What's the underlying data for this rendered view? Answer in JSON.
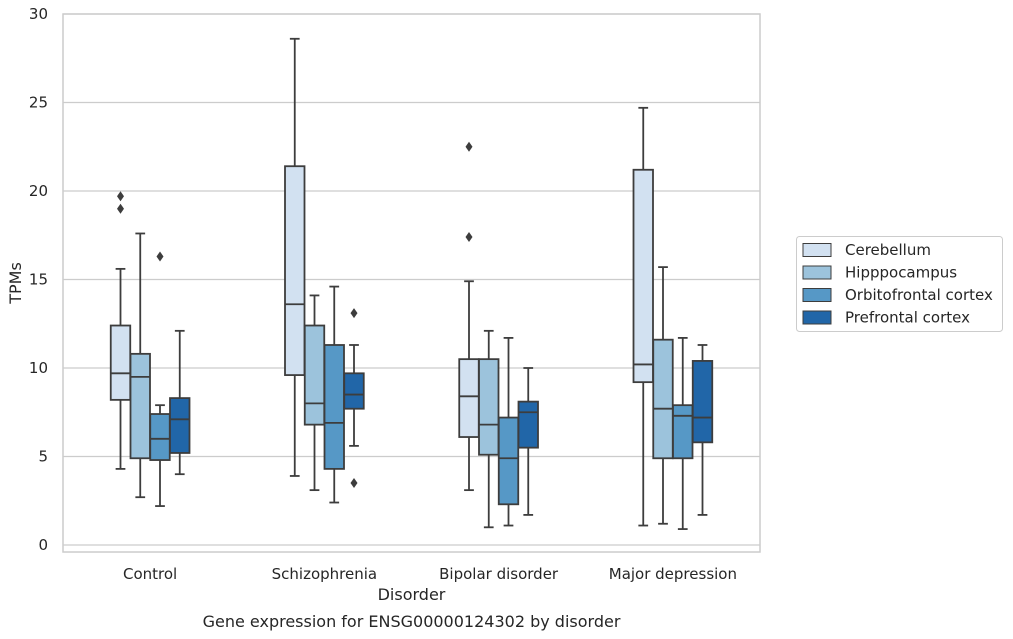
{
  "chart_data": {
    "type": "box",
    "caption": "Gene expression for ENSG00000124302 by disorder",
    "xlabel": "Disorder",
    "ylabel": "TPMs",
    "ylim": [
      -0.5,
      30
    ],
    "yticks": [
      0,
      5,
      10,
      15,
      20,
      25,
      30
    ],
    "grid": true,
    "legend_position": "right",
    "categories": [
      "Control",
      "Schizophrenia",
      "Bipolar disorder",
      "Major depression"
    ],
    "series": [
      {
        "name": "Cerebellum",
        "color": "#d2e1f1",
        "boxes": [
          {
            "whisker_low": 4.3,
            "q1": 8.2,
            "median": 9.7,
            "q3": 12.4,
            "whisker_high": 15.6,
            "outliers": [
              19.0,
              19.7
            ]
          },
          {
            "whisker_low": 3.9,
            "q1": 9.6,
            "median": 13.6,
            "q3": 21.4,
            "whisker_high": 28.6,
            "outliers": []
          },
          {
            "whisker_low": 3.1,
            "q1": 6.1,
            "median": 8.4,
            "q3": 10.5,
            "whisker_high": 14.9,
            "outliers": [
              17.4,
              22.5
            ]
          },
          {
            "whisker_low": 1.1,
            "q1": 9.2,
            "median": 10.2,
            "q3": 21.2,
            "whisker_high": 24.7,
            "outliers": []
          }
        ]
      },
      {
        "name": "Hipppocampus",
        "color": "#9cc3dc",
        "boxes": [
          {
            "whisker_low": 2.7,
            "q1": 4.9,
            "median": 9.5,
            "q3": 10.8,
            "whisker_high": 17.6,
            "outliers": []
          },
          {
            "whisker_low": 3.1,
            "q1": 6.8,
            "median": 8.0,
            "q3": 12.4,
            "whisker_high": 14.1,
            "outliers": []
          },
          {
            "whisker_low": 1.0,
            "q1": 5.1,
            "median": 6.8,
            "q3": 10.5,
            "whisker_high": 12.1,
            "outliers": []
          },
          {
            "whisker_low": 1.2,
            "q1": 4.9,
            "median": 7.7,
            "q3": 11.6,
            "whisker_high": 15.7,
            "outliers": []
          }
        ]
      },
      {
        "name": "Orbitofrontal cortex",
        "color": "#5698c6",
        "boxes": [
          {
            "whisker_low": 2.2,
            "q1": 4.8,
            "median": 6.0,
            "q3": 7.4,
            "whisker_high": 7.9,
            "outliers": [
              16.3
            ]
          },
          {
            "whisker_low": 2.4,
            "q1": 4.3,
            "median": 6.9,
            "q3": 11.3,
            "whisker_high": 14.6,
            "outliers": []
          },
          {
            "whisker_low": 1.1,
            "q1": 2.3,
            "median": 4.9,
            "q3": 7.2,
            "whisker_high": 11.7,
            "outliers": []
          },
          {
            "whisker_low": 0.9,
            "q1": 4.9,
            "median": 7.3,
            "q3": 7.9,
            "whisker_high": 11.7,
            "outliers": []
          }
        ]
      },
      {
        "name": "Prefrontal cortex",
        "color": "#2166a8",
        "boxes": [
          {
            "whisker_low": 4.0,
            "q1": 5.2,
            "median": 7.1,
            "q3": 8.3,
            "whisker_high": 12.1,
            "outliers": []
          },
          {
            "whisker_low": 5.6,
            "q1": 7.7,
            "median": 8.5,
            "q3": 9.7,
            "whisker_high": 11.3,
            "outliers": [
              3.5,
              13.1
            ]
          },
          {
            "whisker_low": 1.7,
            "q1": 5.5,
            "median": 7.5,
            "q3": 8.1,
            "whisker_high": 10.0,
            "outliers": []
          },
          {
            "whisker_low": 1.7,
            "q1": 5.8,
            "median": 7.2,
            "q3": 10.4,
            "whisker_high": 11.3,
            "outliers": []
          }
        ]
      }
    ]
  }
}
